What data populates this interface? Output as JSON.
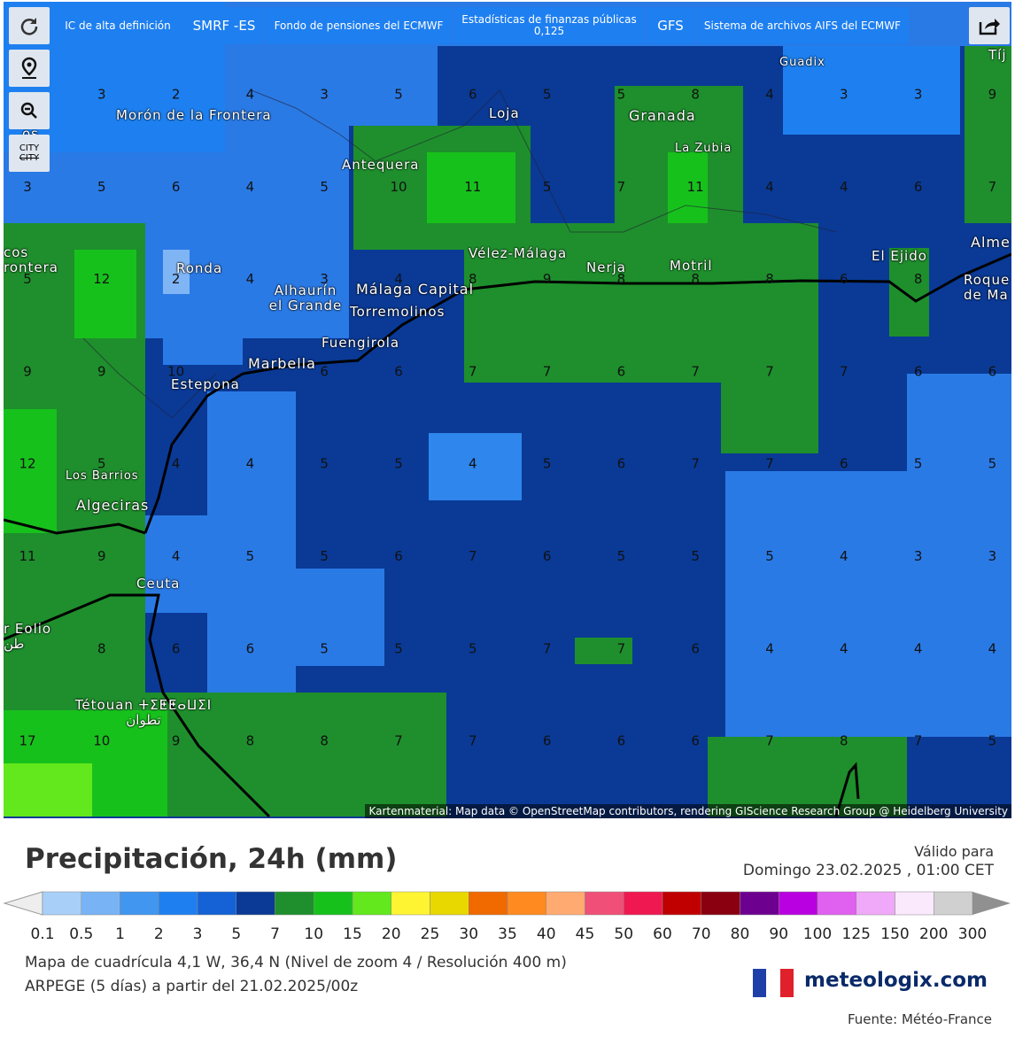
{
  "toolbar": {
    "buttons": [
      "IC de alta definición",
      "SMRF -ES",
      "Fondo de pensiones del ECMWF",
      "Estadísticas de finanzas públicas 0,125",
      "GFS",
      "Sistema de archivos AIFS del ECMWF"
    ],
    "city_toggle": "CITY"
  },
  "map": {
    "grid_values": [
      [
        null,
        3,
        2,
        4,
        3,
        5,
        6,
        5,
        5,
        8,
        4,
        3,
        3,
        9
      ],
      [
        3,
        5,
        6,
        4,
        5,
        10,
        11,
        5,
        7,
        11,
        4,
        4,
        6,
        7
      ],
      [
        5,
        12,
        2,
        4,
        3,
        4,
        8,
        9,
        8,
        8,
        8,
        6,
        8,
        null
      ],
      [
        9,
        9,
        10,
        null,
        6,
        6,
        7,
        7,
        6,
        7,
        7,
        7,
        6,
        6
      ],
      [
        12,
        5,
        4,
        4,
        5,
        5,
        4,
        5,
        6,
        7,
        7,
        6,
        5,
        5
      ],
      [
        11,
        9,
        4,
        5,
        5,
        6,
        7,
        6,
        5,
        5,
        5,
        4,
        3,
        3
      ],
      [
        null,
        8,
        6,
        6,
        5,
        5,
        5,
        7,
        7,
        6,
        4,
        4,
        4,
        4
      ],
      [
        17,
        10,
        9,
        8,
        8,
        7,
        7,
        6,
        6,
        6,
        7,
        8,
        7,
        5
      ]
    ],
    "places": [
      "Morón de la Frontera",
      "Loja",
      "Granada",
      "Guadix",
      "La Zubia",
      "Antequera",
      "Vélez-Málaga",
      "Nerja",
      "Motril",
      "El Ejido",
      "Ronda",
      "Alhaurín el Grande",
      "Málaga Capital",
      "Torremolinos",
      "Fuengirola",
      "Marbella",
      "Estepona",
      "Los Barrios",
      "Algeciras",
      "Ceuta",
      "Tétouan ⵜⵉⵟⵟⴰⵡⵉⵏ تطوان",
      "Roque de Ma",
      "Alme",
      "Tíj",
      "os nca",
      "cos rontera",
      "r Eolio طن"
    ],
    "attribution": "Kartenmaterial: Map data © OpenStreetMap contributors, rendering GIScience Research Group @ Heidelberg University"
  },
  "footer": {
    "title": "Precipitación, 24h (mm)",
    "valid_label": "Válido para",
    "valid_date": "Domingo 23.02.2025 , 01:00 CET",
    "scale_ticks": [
      0.1,
      0.5,
      1,
      2,
      3,
      5,
      7,
      10,
      15,
      20,
      25,
      30,
      35,
      40,
      45,
      50,
      60,
      70,
      80,
      90,
      100,
      125,
      150,
      200,
      300
    ],
    "scale_colors": [
      "#a8cff8",
      "#78b4f5",
      "#4196f0",
      "#1e80f0",
      "#1462d6",
      "#0a3a96",
      "#1e8f2c",
      "#17c11c",
      "#62e81c",
      "#fff432",
      "#e8d800",
      "#f06a00",
      "#ff8a20",
      "#ffaa70",
      "#f05078",
      "#f01850",
      "#c00000",
      "#8a0010",
      "#6e0090",
      "#b800e0",
      "#e060f0",
      "#f0a8f8",
      "#fae8fc",
      "#d0d0d0"
    ],
    "grid_info": "Mapa de cuadrícula 4,1 W, 36,4 N (Nivel de zoom 4 / Resolución 400 m)",
    "model_info": "ARPEGE (5 días) a partir del 21.02.2025/00z",
    "brand": "meteologix.com",
    "source": "Fuente: Météo-France"
  }
}
